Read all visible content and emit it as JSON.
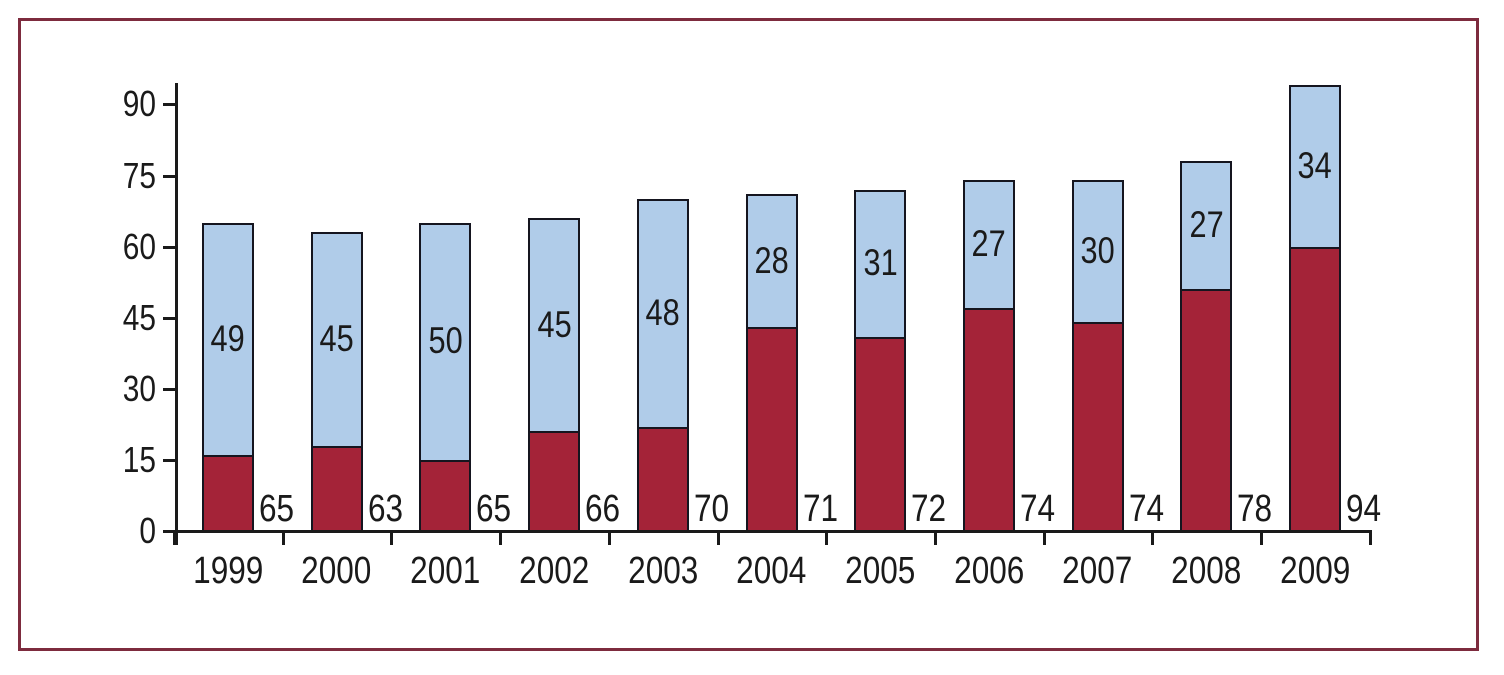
{
  "chart_data": {
    "type": "bar",
    "stacked": true,
    "categories": [
      "1999",
      "2000",
      "2001",
      "2002",
      "2003",
      "2004",
      "2005",
      "2006",
      "2007",
      "2008",
      "2009"
    ],
    "series": [
      {
        "name": "lower-segment",
        "color": "#a42338",
        "values": [
          16,
          18,
          15,
          21,
          22,
          43,
          41,
          47,
          44,
          51,
          60
        ],
        "labels_shown": false
      },
      {
        "name": "upper-segment",
        "color": "#b0cce9",
        "values": [
          49,
          45,
          50,
          45,
          48,
          28,
          31,
          27,
          30,
          27,
          34
        ],
        "labels_shown": true
      }
    ],
    "totals": [
      65,
      63,
      65,
      66,
      70,
      71,
      72,
      74,
      74,
      78,
      94
    ],
    "y_ticks": [
      0,
      15,
      30,
      45,
      60,
      75,
      90
    ],
    "ylim": [
      0,
      94.5
    ],
    "grid": false,
    "legend_shown": false,
    "colors": {
      "bar_outline": "#15151f",
      "axis": "#1a1a1a",
      "text": "#1a1a1a",
      "frame_border": "#7d2b3e",
      "background": "#ffffff"
    }
  }
}
